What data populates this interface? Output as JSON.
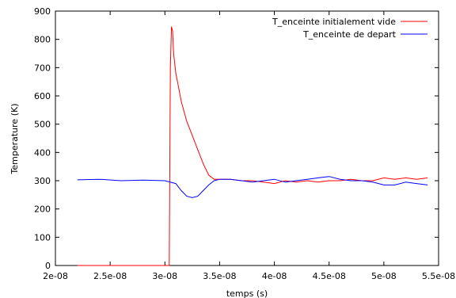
{
  "chart_data": {
    "type": "line",
    "title": "",
    "xlabel": "temps (s)",
    "ylabel": "Temperature (K)",
    "xlim": [
      2e-08,
      5.5e-08
    ],
    "ylim": [
      0,
      900
    ],
    "x_tick_labels": [
      "2e-08",
      "2.5e-08",
      "3e-08",
      "3.5e-08",
      "4e-08",
      "4.5e-08",
      "5e-08",
      "5.5e-08"
    ],
    "x_tick_values": [
      2e-08,
      2.5e-08,
      3e-08,
      3.5e-08,
      4e-08,
      4.5e-08,
      5e-08,
      5.5e-08
    ],
    "y_tick_labels": [
      "0",
      "100",
      "200",
      "300",
      "400",
      "500",
      "600",
      "700",
      "800",
      "900"
    ],
    "y_tick_values": [
      0,
      100,
      200,
      300,
      400,
      500,
      600,
      700,
      800,
      900
    ],
    "grid": false,
    "legend_position": "top-right",
    "series": [
      {
        "name": "T_enceinte initialement vide",
        "color": "#ff0000",
        "x": [
          2.2e-08,
          3.04e-08,
          3.05e-08,
          3.06e-08,
          3.07e-08,
          3.08e-08,
          3.1e-08,
          3.12e-08,
          3.15e-08,
          3.2e-08,
          3.25e-08,
          3.3e-08,
          3.35e-08,
          3.4e-08,
          3.45e-08,
          3.5e-08,
          3.6e-08,
          3.7e-08,
          3.8e-08,
          3.9e-08,
          4e-08,
          4.1e-08,
          4.2e-08,
          4.3e-08,
          4.4e-08,
          4.5e-08,
          4.6e-08,
          4.7e-08,
          4.8e-08,
          4.9e-08,
          5e-08,
          5.1e-08,
          5.2e-08,
          5.3e-08,
          5.4e-08
        ],
        "y": [
          0,
          0,
          700,
          845,
          830,
          750,
          680,
          640,
          580,
          510,
          460,
          410,
          360,
          320,
          305,
          305,
          305,
          300,
          300,
          295,
          290,
          300,
          295,
          300,
          295,
          300,
          300,
          305,
          300,
          300,
          310,
          305,
          310,
          305,
          310
        ]
      },
      {
        "name": "T_enceinte de depart",
        "color": "#0000ff",
        "x": [
          2.2e-08,
          2.4e-08,
          2.6e-08,
          2.8e-08,
          3e-08,
          3.1e-08,
          3.15e-08,
          3.2e-08,
          3.25e-08,
          3.3e-08,
          3.35e-08,
          3.4e-08,
          3.45e-08,
          3.5e-08,
          3.6e-08,
          3.7e-08,
          3.8e-08,
          3.9e-08,
          4e-08,
          4.1e-08,
          4.2e-08,
          4.3e-08,
          4.4e-08,
          4.5e-08,
          4.6e-08,
          4.7e-08,
          4.8e-08,
          4.9e-08,
          5e-08,
          5.1e-08,
          5.2e-08,
          5.3e-08,
          5.4e-08
        ],
        "y": [
          303,
          305,
          300,
          302,
          300,
          290,
          265,
          245,
          240,
          245,
          265,
          285,
          300,
          305,
          305,
          300,
          295,
          300,
          305,
          295,
          300,
          305,
          310,
          315,
          305,
          300,
          300,
          295,
          285,
          285,
          295,
          290,
          285
        ]
      }
    ]
  }
}
